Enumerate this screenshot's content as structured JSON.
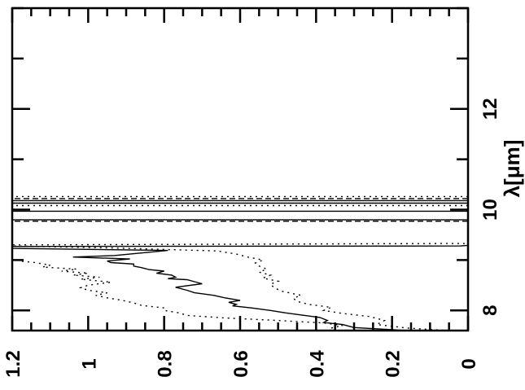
{
  "chart_data": {
    "type": "line",
    "orientation": "rotated-90",
    "title": "",
    "xlabel": "λ[μm]",
    "ylabel": "",
    "xlim": [
      7.6,
      14.0
    ],
    "ylim": [
      0,
      1.2
    ],
    "x_ticks": [
      8,
      10,
      12
    ],
    "x_tick_labels": [
      "8",
      "10",
      "12"
    ],
    "y_ticks": [
      0,
      0.2,
      0.4,
      0.6,
      0.8,
      1.0,
      1.2
    ],
    "y_tick_labels": [
      "0",
      "0.2",
      "0.4",
      "0.6",
      "0.8",
      "1",
      "1.2"
    ],
    "grid": false,
    "legend": "none",
    "series": [
      {
        "style": "solid",
        "x": [
          7.6,
          7.66,
          7.72,
          7.76,
          7.8,
          7.86,
          7.9,
          7.95,
          8.0,
          8.05,
          8.09,
          8.12,
          8.16,
          8.2,
          8.25,
          8.3,
          8.35,
          8.4,
          8.46,
          8.53,
          8.57,
          8.61,
          8.63,
          8.66,
          8.7,
          8.74,
          8.78,
          8.81,
          8.85,
          8.88,
          8.92,
          8.95,
          8.98,
          9.02,
          9.06,
          9.09,
          9.14,
          9.19,
          9.23,
          9.27,
          9.28,
          9.29
        ],
        "y": [
          0.16,
          0.3,
          0.33,
          0.38,
          0.37,
          0.39,
          0.43,
          0.48,
          0.52,
          0.57,
          0.62,
          0.61,
          0.63,
          0.6,
          0.64,
          0.67,
          0.72,
          0.74,
          0.77,
          0.7,
          0.72,
          0.74,
          0.79,
          0.77,
          0.78,
          0.82,
          0.8,
          0.84,
          0.86,
          0.88,
          0.88,
          0.94,
          0.95,
          0.89,
          1.04,
          0.93,
          0.86,
          0.79,
          1.2,
          1.2,
          0.02,
          0.0
        ]
      },
      {
        "style": "dotted",
        "x": [
          7.65,
          7.7,
          7.75,
          7.8,
          7.85,
          7.9,
          7.95,
          8.0,
          8.05,
          8.1,
          8.15,
          8.2,
          8.25,
          8.3,
          8.35,
          8.4,
          8.45,
          8.5,
          8.56,
          8.62,
          8.66,
          8.7,
          8.74,
          8.78,
          8.82,
          8.86,
          8.9,
          8.95,
          8.98,
          9.02
        ],
        "y": [
          0.36,
          0.33,
          0.38,
          0.5,
          0.64,
          0.74,
          0.76,
          0.8,
          0.8,
          0.86,
          0.88,
          0.91,
          0.95,
          0.98,
          0.95,
          1.0,
          1.02,
          1.0,
          0.94,
          1.02,
          0.97,
          1.04,
          1.0,
          1.07,
          1.03,
          1.12,
          1.1,
          1.14,
          1.18,
          1.2
        ]
      },
      {
        "style": "dotted",
        "x": [
          7.6,
          7.65,
          7.72,
          7.8,
          7.88,
          7.94,
          8.0,
          8.06,
          8.12,
          8.18,
          8.24,
          8.3,
          8.38,
          8.45,
          8.52,
          8.58,
          8.64,
          8.7,
          8.76,
          8.82,
          8.88,
          8.94,
          9.0,
          9.06,
          9.12,
          9.18,
          9.24,
          9.28,
          9.3,
          9.33
        ],
        "y": [
          0.05,
          0.16,
          0.24,
          0.22,
          0.26,
          0.33,
          0.38,
          0.36,
          0.42,
          0.45,
          0.46,
          0.44,
          0.49,
          0.51,
          0.52,
          0.5,
          0.54,
          0.52,
          0.55,
          0.53,
          0.55,
          0.56,
          0.54,
          0.58,
          0.61,
          0.66,
          0.94,
          1.2,
          1.2,
          0.0
        ]
      },
      {
        "style": "dashed",
        "x": [
          9.77,
          9.77
        ],
        "y": [
          0,
          1.2
        ]
      },
      {
        "style": "solid",
        "x": [
          9.8,
          9.8
        ],
        "y": [
          0,
          1.2
        ]
      },
      {
        "style": "solid",
        "x": [
          9.97,
          9.97
        ],
        "y": [
          0,
          1.2
        ]
      },
      {
        "style": "dotted",
        "x": [
          10.08,
          10.08
        ],
        "y": [
          0,
          1.2
        ]
      },
      {
        "style": "solid",
        "x": [
          10.13,
          10.13
        ],
        "y": [
          0,
          1.2
        ]
      },
      {
        "style": "solid",
        "x": [
          10.18,
          10.18
        ],
        "y": [
          0,
          1.2
        ]
      },
      {
        "style": "dashed",
        "x": [
          10.22,
          10.22
        ],
        "y": [
          0,
          1.2
        ]
      },
      {
        "style": "dotted",
        "x": [
          10.26,
          10.26
        ],
        "y": [
          0,
          1.2
        ]
      }
    ]
  }
}
